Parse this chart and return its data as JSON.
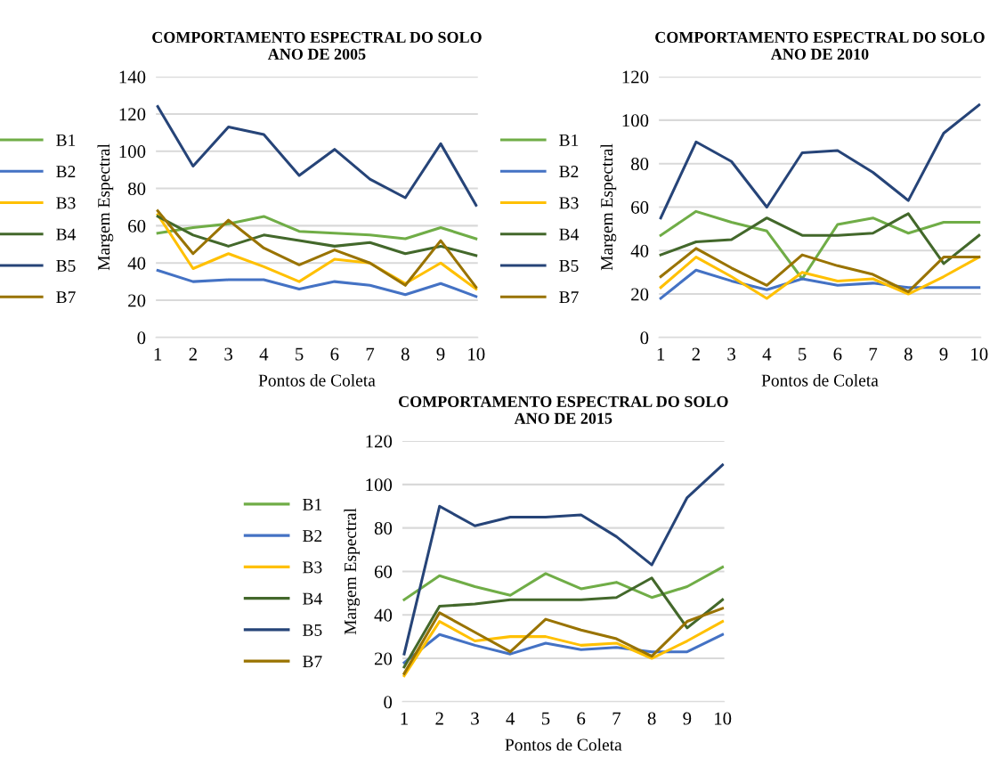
{
  "chart_data": [
    {
      "type": "line",
      "title": "COMPORTAMENTO ESPECTRAL DO SOLO\nANO DE 2005",
      "xlabel": "Pontos de Coleta",
      "ylabel": "Margem Espectral",
      "categories": [
        "1",
        "2",
        "3",
        "4",
        "5",
        "6",
        "7",
        "8",
        "9",
        "10"
      ],
      "ylim": [
        0,
        140
      ],
      "yticks": [
        0,
        20,
        40,
        60,
        80,
        100,
        120,
        140
      ],
      "grid": "y",
      "legend": "left",
      "marker": "none",
      "series": [
        {
          "name": "B1",
          "color": "#70ad47",
          "values": [
            56,
            59,
            61,
            65,
            57,
            56,
            55,
            53,
            59,
            53
          ]
        },
        {
          "name": "B2",
          "color": "#4472c4",
          "values": [
            36,
            30,
            31,
            31,
            26,
            30,
            28,
            23,
            29,
            22
          ]
        },
        {
          "name": "B3",
          "color": "#ffc000",
          "values": [
            66,
            37,
            45,
            38,
            30,
            42,
            40,
            29,
            40,
            26
          ]
        },
        {
          "name": "B4",
          "color": "#43682b",
          "values": [
            65,
            55,
            49,
            55,
            52,
            49,
            51,
            45,
            49,
            44
          ]
        },
        {
          "name": "B5",
          "color": "#264478",
          "values": [
            124,
            92,
            113,
            109,
            87,
            101,
            85,
            75,
            104,
            71
          ]
        },
        {
          "name": "B7",
          "color": "#997300",
          "values": [
            68,
            45,
            63,
            48,
            39,
            47,
            40,
            28,
            52,
            27
          ]
        }
      ]
    },
    {
      "type": "line",
      "title": "COMPORTAMENTO ESPECTRAL DO SOLO\nANO DE 2010",
      "xlabel": "Pontos de Coleta",
      "ylabel": "Margem Espectral",
      "categories": [
        "1",
        "2",
        "3",
        "4",
        "5",
        "6",
        "7",
        "8",
        "9",
        "10"
      ],
      "ylim": [
        0,
        120
      ],
      "yticks": [
        0,
        20,
        40,
        60,
        80,
        100,
        120
      ],
      "grid": "y",
      "legend": "left",
      "marker": "none",
      "series": [
        {
          "name": "B1",
          "color": "#70ad47",
          "values": [
            47,
            58,
            53,
            49,
            27,
            52,
            55,
            48,
            53,
            53
          ]
        },
        {
          "name": "B2",
          "color": "#4472c4",
          "values": [
            18,
            31,
            26,
            22,
            27,
            24,
            25,
            23,
            23,
            23
          ]
        },
        {
          "name": "B3",
          "color": "#ffc000",
          "values": [
            23,
            37,
            28,
            18,
            30,
            26,
            27,
            20,
            28,
            37
          ]
        },
        {
          "name": "B4",
          "color": "#43682b",
          "values": [
            38,
            44,
            45,
            55,
            47,
            47,
            48,
            57,
            34,
            47
          ]
        },
        {
          "name": "B5",
          "color": "#264478",
          "values": [
            55,
            90,
            81,
            60,
            85,
            86,
            76,
            63,
            94,
            107
          ]
        },
        {
          "name": "B7",
          "color": "#997300",
          "values": [
            28,
            41,
            32,
            24,
            38,
            33,
            29,
            21,
            37,
            37
          ]
        }
      ]
    },
    {
      "type": "line",
      "title": "COMPORTAMENTO ESPECTRAL DO SOLO\nANO DE 2015",
      "xlabel": "Pontos de Coleta",
      "ylabel": "Margem Espectral",
      "categories": [
        "1",
        "2",
        "3",
        "4",
        "5",
        "6",
        "7",
        "8",
        "9",
        "10"
      ],
      "ylim": [
        0,
        120
      ],
      "yticks": [
        0,
        20,
        40,
        60,
        80,
        100,
        120
      ],
      "grid": "y",
      "legend": "left",
      "marker": "none",
      "series": [
        {
          "name": "B1",
          "color": "#70ad47",
          "values": [
            47,
            58,
            53,
            49,
            59,
            52,
            55,
            48,
            53,
            62
          ]
        },
        {
          "name": "B2",
          "color": "#4472c4",
          "values": [
            18,
            31,
            26,
            22,
            27,
            24,
            25,
            23,
            23,
            31
          ]
        },
        {
          "name": "B3",
          "color": "#ffc000",
          "values": [
            12,
            37,
            28,
            30,
            30,
            26,
            27,
            20,
            28,
            37
          ]
        },
        {
          "name": "B4",
          "color": "#43682b",
          "values": [
            16,
            44,
            45,
            47,
            47,
            47,
            48,
            57,
            34,
            47
          ]
        },
        {
          "name": "B5",
          "color": "#264478",
          "values": [
            22,
            90,
            81,
            85,
            85,
            86,
            76,
            63,
            94,
            109
          ]
        },
        {
          "name": "B7",
          "color": "#997300",
          "values": [
            13,
            41,
            32,
            23,
            38,
            33,
            29,
            21,
            37,
            43
          ]
        }
      ]
    }
  ]
}
